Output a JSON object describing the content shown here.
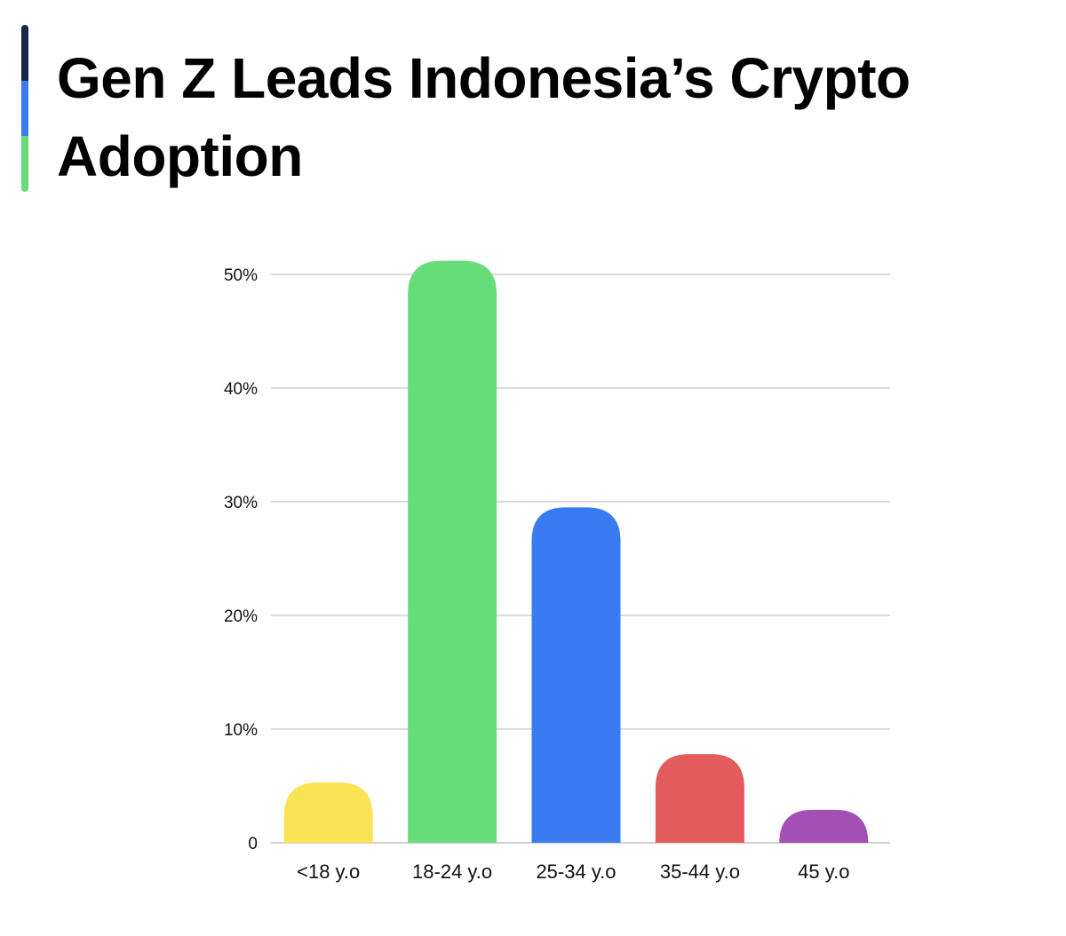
{
  "title": "Gen Z Leads Indonesia’s Crypto Adoption",
  "accent_colors": [
    "#14284b",
    "#3a7af2",
    "#67dc7b"
  ],
  "chart_data": {
    "type": "bar",
    "title": "Gen Z Leads Indonesia’s Crypto Adoption",
    "categories": [
      "<18 y.o",
      "18-24 y.o",
      "25-34 y.o",
      "35-44 y.o",
      "45 y.o"
    ],
    "values": [
      5.3,
      51.2,
      29.5,
      7.8,
      2.9
    ],
    "colors": [
      "#fae355",
      "#67dc7b",
      "#3a7af2",
      "#e45b5d",
      "#a44fb6"
    ],
    "y_ticks": [
      0,
      10,
      20,
      30,
      40,
      50
    ],
    "y_tick_labels": [
      "0",
      "10%",
      "20%",
      "30%",
      "40%",
      "50%"
    ],
    "ylim": [
      0,
      50
    ],
    "xlabel": "",
    "ylabel": "",
    "grid": true,
    "gridline_color": "#cfcfcf",
    "legend": "none"
  }
}
